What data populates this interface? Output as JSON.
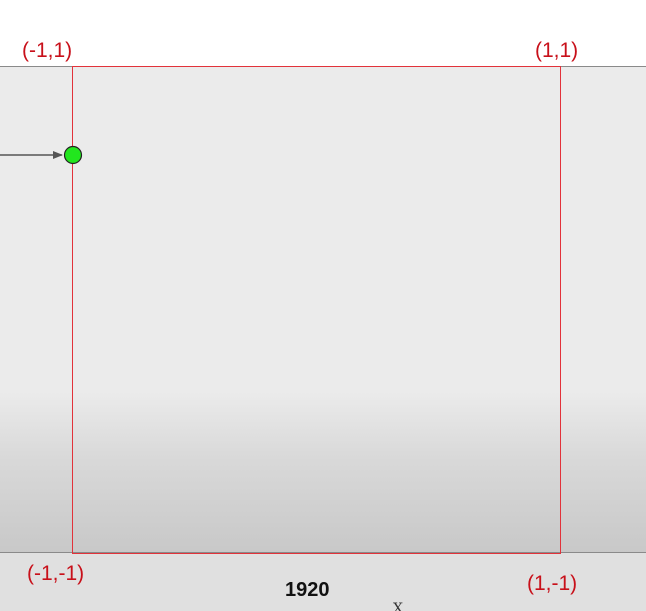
{
  "corners": {
    "top_left": "(-1,1)",
    "top_right": "(1,1)",
    "bottom_left": "(-1,-1)",
    "bottom_right": "(1,-1)"
  },
  "width_label": "1920",
  "axis_label": "X",
  "colors": {
    "frame": "#e2323a",
    "corner_text": "#c8101a",
    "marker_fill": "#22e61e",
    "arrow": "#555555",
    "screen": "#ebebeb"
  },
  "marker": {
    "icon": "green-point-icon"
  }
}
